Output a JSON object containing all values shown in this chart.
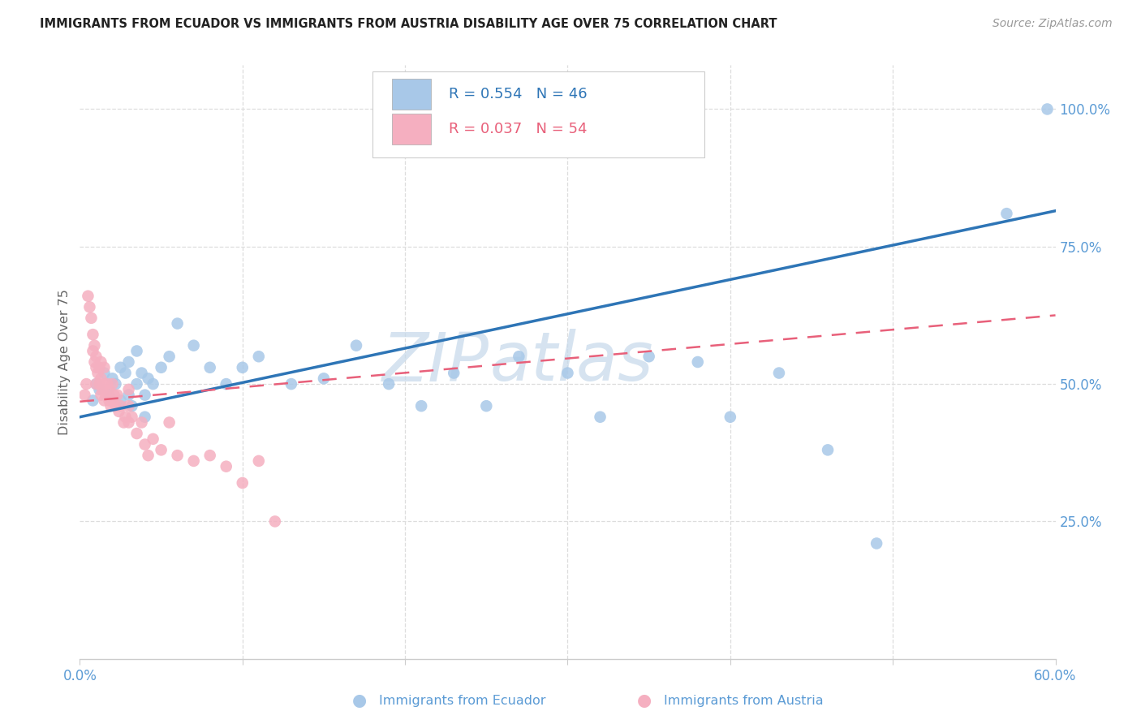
{
  "title": "IMMIGRANTS FROM ECUADOR VS IMMIGRANTS FROM AUSTRIA DISABILITY AGE OVER 75 CORRELATION CHART",
  "source": "Source: ZipAtlas.com",
  "ylabel": "Disability Age Over 75",
  "xlim": [
    0.0,
    0.6
  ],
  "ylim": [
    0.0,
    1.08
  ],
  "yticks_right": [
    0.25,
    0.5,
    0.75,
    1.0
  ],
  "ytick_labels_right": [
    "25.0%",
    "50.0%",
    "75.0%",
    "100.0%"
  ],
  "ecuador_R": 0.554,
  "ecuador_N": 46,
  "austria_R": 0.037,
  "austria_N": 54,
  "ecuador_color": "#a8c8e8",
  "austria_color": "#f5afc0",
  "ecuador_line_color": "#2e75b6",
  "austria_line_color": "#e8607a",
  "title_color": "#222222",
  "axis_label_color": "#666666",
  "tick_label_color": "#5b9bd5",
  "grid_color": "#dddddd",
  "watermark_color": "#c5d8ea",
  "background_color": "#ffffff",
  "ecuador_x": [
    0.008,
    0.01,
    0.012,
    0.015,
    0.018,
    0.02,
    0.022,
    0.025,
    0.025,
    0.028,
    0.03,
    0.03,
    0.032,
    0.035,
    0.035,
    0.038,
    0.04,
    0.04,
    0.042,
    0.045,
    0.05,
    0.055,
    0.06,
    0.07,
    0.08,
    0.09,
    0.1,
    0.11,
    0.13,
    0.15,
    0.17,
    0.19,
    0.21,
    0.23,
    0.25,
    0.27,
    0.3,
    0.32,
    0.35,
    0.38,
    0.4,
    0.43,
    0.46,
    0.49,
    0.57,
    0.595
  ],
  "ecuador_y": [
    0.47,
    0.5,
    0.49,
    0.52,
    0.48,
    0.51,
    0.5,
    0.53,
    0.47,
    0.52,
    0.48,
    0.54,
    0.46,
    0.5,
    0.56,
    0.52,
    0.48,
    0.44,
    0.51,
    0.5,
    0.53,
    0.55,
    0.61,
    0.57,
    0.53,
    0.5,
    0.53,
    0.55,
    0.5,
    0.51,
    0.57,
    0.5,
    0.46,
    0.52,
    0.46,
    0.55,
    0.52,
    0.44,
    0.55,
    0.54,
    0.44,
    0.52,
    0.38,
    0.21,
    0.81,
    1.0
  ],
  "austria_x": [
    0.003,
    0.004,
    0.005,
    0.006,
    0.007,
    0.008,
    0.008,
    0.009,
    0.009,
    0.01,
    0.01,
    0.01,
    0.011,
    0.012,
    0.012,
    0.013,
    0.013,
    0.013,
    0.014,
    0.015,
    0.015,
    0.015,
    0.016,
    0.017,
    0.018,
    0.018,
    0.019,
    0.02,
    0.02,
    0.021,
    0.022,
    0.023,
    0.024,
    0.025,
    0.027,
    0.028,
    0.03,
    0.03,
    0.032,
    0.035,
    0.038,
    0.04,
    0.042,
    0.045,
    0.05,
    0.055,
    0.06,
    0.07,
    0.08,
    0.09,
    0.1,
    0.11,
    0.12,
    0.03
  ],
  "austria_y": [
    0.48,
    0.5,
    0.66,
    0.64,
    0.62,
    0.59,
    0.56,
    0.54,
    0.57,
    0.53,
    0.55,
    0.5,
    0.52,
    0.5,
    0.53,
    0.48,
    0.51,
    0.54,
    0.49,
    0.47,
    0.5,
    0.53,
    0.48,
    0.5,
    0.47,
    0.49,
    0.46,
    0.47,
    0.5,
    0.48,
    0.46,
    0.48,
    0.45,
    0.46,
    0.43,
    0.44,
    0.43,
    0.46,
    0.44,
    0.41,
    0.43,
    0.39,
    0.37,
    0.4,
    0.38,
    0.43,
    0.37,
    0.36,
    0.37,
    0.35,
    0.32,
    0.36,
    0.25,
    0.49
  ]
}
